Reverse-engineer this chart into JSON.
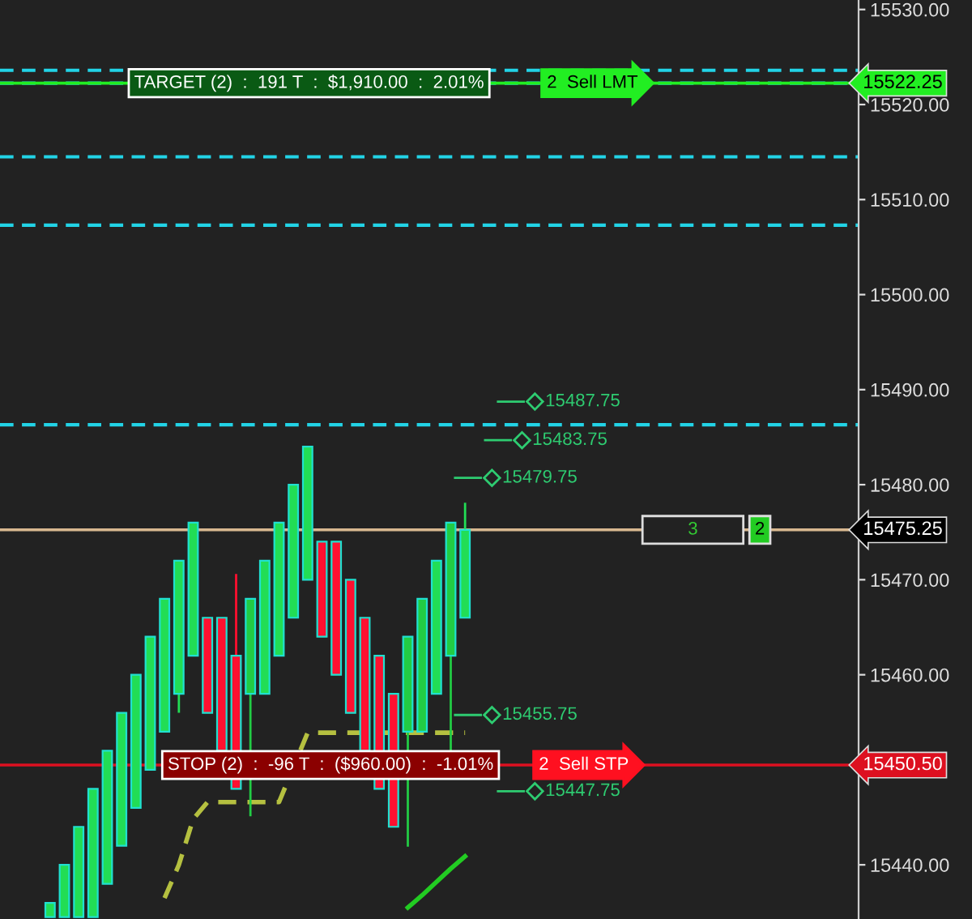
{
  "chart_data": {
    "type": "candlestick",
    "categories": [
      null,
      null,
      null,
      null,
      null,
      null,
      null,
      null,
      null,
      null,
      null,
      null,
      null,
      null,
      null,
      null,
      null,
      null,
      null,
      null,
      null,
      null,
      null,
      null,
      null,
      null,
      null,
      null,
      null,
      null,
      null,
      null,
      null,
      null,
      null,
      null,
      null,
      null,
      null,
      null,
      null,
      null,
      null,
      null,
      null,
      null,
      null,
      null,
      null,
      null,
      null,
      null,
      null,
      null,
      null,
      null,
      null,
      null,
      null,
      null
    ],
    "ohlc": [
      null,
      null,
      null,
      [
        15434.5,
        15436,
        15434.5,
        15436
      ],
      [
        15434.5,
        15440,
        15434.5,
        15440
      ],
      [
        15434.5,
        15444,
        15434.5,
        15444
      ],
      [
        15434.5,
        15448,
        15434.5,
        15448
      ],
      [
        15438,
        15452,
        15438,
        15452
      ],
      [
        15442,
        15456,
        15442,
        15456
      ],
      [
        15446,
        15460,
        15446,
        15460
      ],
      [
        15450,
        15464,
        15450,
        15464
      ],
      [
        15454,
        15468,
        15454,
        15468
      ],
      [
        15458,
        15472,
        15456,
        15472
      ],
      [
        15462,
        15476,
        15462,
        15476
      ],
      [
        15466,
        15466,
        15456,
        15456
      ],
      [
        15466,
        15466,
        15452,
        15452
      ],
      [
        15462,
        15470.6,
        15448,
        15448
      ],
      [
        15458,
        15468,
        15445.1,
        15468
      ],
      [
        15458,
        15472,
        15458,
        15472
      ],
      [
        15462,
        15476,
        15462,
        15476
      ],
      [
        15466,
        15480,
        15466,
        15480
      ],
      [
        15470,
        15484,
        15470,
        15484
      ],
      [
        15474,
        15474,
        15464,
        15464
      ],
      [
        15474,
        15474,
        15460,
        15460
      ],
      [
        15470,
        15470,
        15456,
        15456
      ],
      [
        15466,
        15466,
        15452,
        15452
      ],
      [
        15462,
        15462,
        15448,
        15448
      ],
      [
        15458,
        15458,
        15444,
        15444
      ],
      [
        15454,
        15464,
        15441.9,
        15464
      ],
      [
        15454,
        15468,
        15454,
        15468
      ],
      [
        15458,
        15472,
        15458,
        15472
      ],
      [
        15462,
        15476,
        15452,
        15476
      ],
      [
        15466,
        15478.1,
        15466,
        15475.25
      ],
      null,
      null,
      null,
      null,
      null,
      null,
      null,
      null,
      null,
      null,
      null,
      null,
      null,
      null,
      null,
      null,
      null,
      null,
      null,
      null,
      null,
      null,
      null,
      null,
      null,
      null,
      null
    ],
    "colors": [
      null,
      null,
      null,
      "#22dd55",
      "#22dd55",
      "#22dd55",
      "#22dd55",
      "#22dd55",
      "#22dd55",
      "#22dd55",
      "#22dd55",
      "#22dd55",
      "#22dd55",
      "#22dd55",
      "#ff1030",
      "#ff1030",
      "#ff1030",
      "#22cc44",
      "#22dd55",
      "#22dd55",
      "#22dd55",
      "#22dd55",
      "#ff1030",
      "#ff1030",
      "#ff1030",
      "#ff1030",
      "#ff1030",
      "#ff1030",
      "#22cc44",
      "#22cc44",
      "#22dd55",
      "#22cc44",
      "#22dd55",
      null,
      null,
      null,
      null,
      null,
      null,
      null,
      null,
      null,
      null,
      null,
      null,
      null,
      null,
      null,
      null,
      null,
      null,
      null,
      null,
      null,
      null,
      null,
      null,
      null,
      null,
      null
    ],
    "series": [
      {
        "type": "line",
        "color": "#b5c040",
        "line_style": "dashed",
        "values": [
          null,
          null,
          null,
          null,
          null,
          null,
          null,
          null,
          null,
          null,
          null,
          15436.5,
          15440,
          15444.8,
          15446.6,
          15446.6,
          15446.6,
          15446.6,
          15446.6,
          15446.6,
          null,
          15453.9,
          15453.9,
          15453.9,
          15453.9,
          15453.9,
          15453.9,
          15453.9,
          15453.9,
          15453.9,
          15453.9,
          15453.9,
          15453.9,
          null,
          null,
          null,
          null,
          null,
          null,
          null,
          null,
          null,
          null,
          null,
          null,
          null,
          null,
          null,
          null,
          null,
          null,
          null,
          null,
          null,
          null,
          null,
          null,
          null,
          null,
          null
        ]
      },
      {
        "type": "line",
        "color": "#22cc22",
        "line_style": "solid",
        "values": [
          null,
          null,
          null,
          null,
          null,
          null,
          null,
          null,
          null,
          null,
          null,
          null,
          null,
          null,
          null,
          null,
          null,
          null,
          null,
          null,
          null,
          null,
          null,
          null,
          null,
          null,
          null,
          null,
          15435.5,
          15436.8,
          15438.2,
          15439.6,
          15440.9,
          null,
          null,
          null,
          null,
          null,
          null,
          null,
          null,
          null,
          null,
          null,
          null,
          null,
          null,
          null,
          null,
          null,
          null,
          null,
          null,
          null,
          null,
          null,
          null,
          null,
          null,
          null
        ]
      }
    ],
    "ylim": [
      15434.3,
      15531
    ],
    "yticks": [
      {
        "value": 15440,
        "label": "15440.00"
      },
      {
        "value": 15450,
        "label": null
      },
      {
        "value": 15460,
        "label": "15460.00"
      },
      {
        "value": 15470,
        "label": "15470.00"
      },
      {
        "value": 15480,
        "label": "15480.00"
      },
      {
        "value": 15490,
        "label": "15490.00"
      },
      {
        "value": 15500,
        "label": "15500.00"
      },
      {
        "value": 15510,
        "label": "15510.00"
      },
      {
        "value": 15520,
        "label": "15520.00"
      },
      {
        "value": 15530,
        "label": "15530.00"
      }
    ],
    "tick_labels": "y",
    "grid": false,
    "ref_lines": [
      {
        "axis": "y",
        "value": 15523.6,
        "color": "#22d3e6",
        "line_style": "dashed"
      },
      {
        "axis": "y",
        "value": 15522.25,
        "color": "#22d3e6",
        "line_style": "dashed"
      },
      {
        "axis": "y",
        "value": 15514.5,
        "color": "#22d3e6",
        "line_style": "dashed"
      },
      {
        "axis": "y",
        "value": 15507.3,
        "color": "#22d3e6",
        "line_style": "dashed"
      },
      {
        "axis": "y",
        "value": 15486.3,
        "color": "#22d3e6",
        "line_style": "dashed"
      },
      {
        "axis": "y",
        "value": 15522.25,
        "color": "#22ee22",
        "line_style": "solid",
        "label": "15522.25"
      },
      {
        "axis": "y",
        "value": 15475.25,
        "color": "#d8b890",
        "line_style": "solid",
        "label": "15475.25"
      },
      {
        "axis": "y",
        "value": 15450.5,
        "color": "#dd1020",
        "line_style": "solid",
        "label": "15450.50"
      }
    ],
    "annotations": [
      {
        "text": "TARGET (2)  :  191 T  :  $1,910.00  :  2.01%",
        "y": 15522.25
      },
      {
        "text": "2  Sell LMT",
        "y": 15522.25
      },
      {
        "text": "STOP (2)  :  -96 T  :  ($960.00)  :  -1.01%",
        "y": 15450.5
      },
      {
        "text": "2  Sell STP",
        "y": 15450.5
      },
      "15487.75",
      "15483.75",
      "15479.75",
      "15455.75",
      "15447.75",
      {
        "text": "3",
        "y": 15475.25
      },
      {
        "text": "2",
        "y": 15475.25
      }
    ]
  }
}
